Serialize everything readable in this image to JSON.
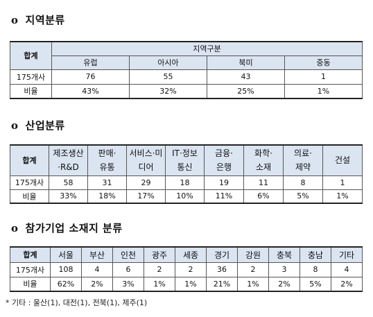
{
  "region": {
    "title": "지역분류",
    "bullet": "o",
    "total_header": "합계",
    "group_header": "지역구분",
    "columns": [
      "유럽",
      "아시아",
      "북미",
      "중동"
    ],
    "rows": [
      {
        "label": "175개사",
        "values": [
          "76",
          "55",
          "43",
          "1"
        ]
      },
      {
        "label": "비율",
        "values": [
          "43%",
          "32%",
          "25%",
          "1%"
        ]
      }
    ]
  },
  "industry": {
    "title": "산업분류",
    "bullet": "o",
    "total_header": "합계",
    "columns": [
      [
        "제조생산",
        "·R&D"
      ],
      [
        "판매·",
        "유통"
      ],
      [
        "서비스·미",
        "디어"
      ],
      [
        "IT·정보",
        "통신"
      ],
      [
        "금융·",
        "은행"
      ],
      [
        "화학·",
        "소재"
      ],
      [
        "의료·",
        "제약"
      ],
      [
        "건설"
      ]
    ],
    "rows": [
      {
        "label": "175개사",
        "values": [
          "58",
          "31",
          "29",
          "18",
          "19",
          "11",
          "8",
          "1"
        ]
      },
      {
        "label": "비율",
        "values": [
          "33%",
          "18%",
          "17%",
          "10%",
          "11%",
          "6%",
          "5%",
          "1%"
        ]
      }
    ]
  },
  "location": {
    "title": "참가기업 소재지 분류",
    "bullet": "o",
    "total_header": "합계",
    "columns": [
      "서울",
      "부산",
      "인천",
      "광주",
      "세종",
      "경기",
      "강원",
      "충북",
      "충남",
      "기타"
    ],
    "rows": [
      {
        "label": "175개사",
        "values": [
          "108",
          "4",
          "6",
          "2",
          "2",
          "36",
          "2",
          "3",
          "8",
          "4"
        ]
      },
      {
        "label": "비율",
        "values": [
          "62%",
          "2%",
          "3%",
          "1%",
          "1%",
          "21%",
          "1%",
          "2%",
          "5%",
          "2%"
        ]
      }
    ]
  },
  "footnote": "* 기타 : 울산(1), 대전(1), 전북(1), 제주(1)",
  "colors": {
    "header_bg": "#dbe4f1",
    "border": "#555555"
  }
}
